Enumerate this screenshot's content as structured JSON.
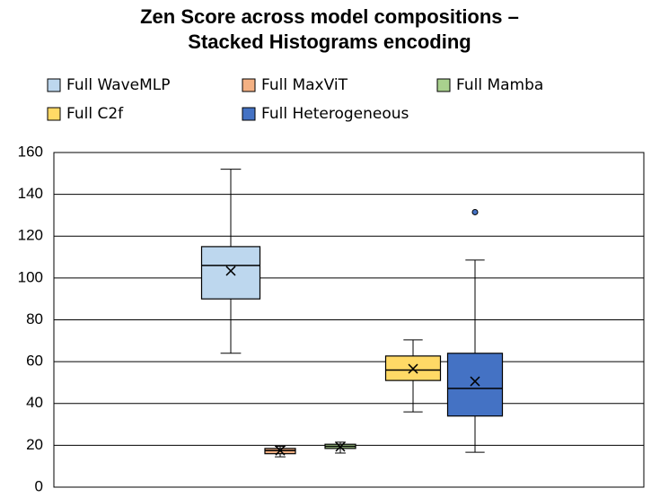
{
  "chart_data": {
    "type": "box",
    "title": [
      "Zen Score across model compositions –",
      "Stacked Histograms encoding"
    ],
    "ylim": [
      0,
      160
    ],
    "yticks": [
      0,
      20,
      40,
      60,
      80,
      100,
      120,
      140,
      160
    ],
    "grid": true,
    "legend": "top",
    "series": [
      {
        "name": "Full WaveMLP",
        "color": "#bdd7ee",
        "min": 64,
        "q1": 90,
        "median": 106,
        "q3": 115,
        "max": 152,
        "mean": 103.4,
        "outliers": []
      },
      {
        "name": "Full MaxViT",
        "color": "#f4b183",
        "min": 14.5,
        "q1": 16,
        "median": 17.5,
        "q3": 18.5,
        "max": 19.5,
        "mean": 17.5,
        "outliers": []
      },
      {
        "name": "Full Mamba",
        "color": "#a9d18e",
        "min": 16.3,
        "q1": 18.5,
        "median": 19.5,
        "q3": 20.5,
        "max": 21.5,
        "mean": 19.3,
        "outliers": []
      },
      {
        "name": "Full C2f",
        "color": "#ffd966",
        "min": 36,
        "q1": 51,
        "median": 56,
        "q3": 62.7,
        "max": 70.4,
        "mean": 56.6,
        "outliers": []
      },
      {
        "name": "Full Heterogeneous",
        "color": "#4472c4",
        "min": 16.7,
        "q1": 34,
        "median": 47.2,
        "q3": 64,
        "max": 108.6,
        "mean": 50.6,
        "outliers": [
          131.5
        ]
      }
    ]
  }
}
